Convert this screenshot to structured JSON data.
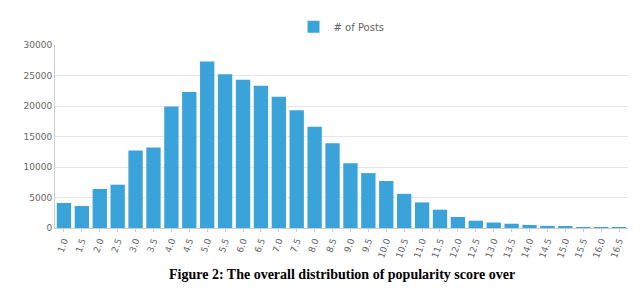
{
  "chart_data": {
    "type": "bar",
    "categories": [
      "1.0",
      "1.5",
      "2.0",
      "2.5",
      "3.0",
      "3.5",
      "4.0",
      "4.5",
      "5.0",
      "5.5",
      "6.0",
      "6.5",
      "7.0",
      "7.5",
      "8.0",
      "8.5",
      "9.0",
      "9.5",
      "10.0",
      "10.5",
      "11.0",
      "11.5",
      "12.0",
      "12.5",
      "13.0",
      "13.5",
      "14.0",
      "14.5",
      "15.0",
      "15.5",
      "16.0",
      "16.5"
    ],
    "series": [
      {
        "name": "# of Posts",
        "color": "#3aa3d9",
        "values": [
          4100,
          3600,
          6400,
          7100,
          12700,
          13200,
          19900,
          22300,
          27300,
          25200,
          24300,
          23300,
          21500,
          19300,
          16600,
          13900,
          10600,
          9000,
          7700,
          5600,
          4200,
          3000,
          1800,
          1200,
          900,
          700,
          500,
          350,
          250,
          150,
          80,
          30
        ]
      }
    ],
    "ylim": [
      0,
      30000
    ],
    "yticks": [
      0,
      5000,
      10000,
      15000,
      20000,
      25000,
      30000
    ],
    "grid": true,
    "legend": "top",
    "annotations": [
      "Figure 2: The overall distribution of popularity score over"
    ]
  }
}
